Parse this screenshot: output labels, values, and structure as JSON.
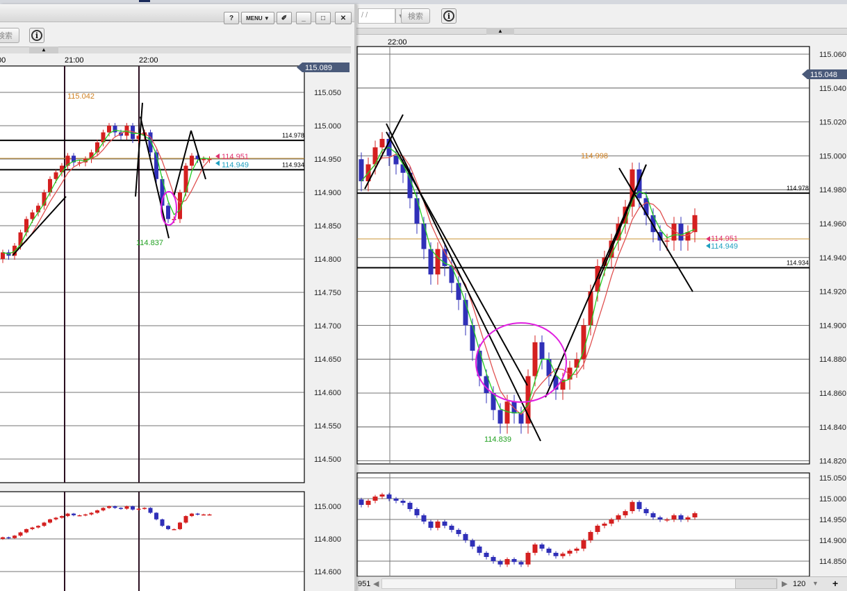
{
  "colors": {
    "up": "#d42020",
    "down": "#3030b8",
    "ma_fast": "#22cc22",
    "ma_slow": "#e05050",
    "circle": "#e020e0",
    "tag": "#4a5a7a"
  },
  "left_window": {
    "title_buttons": {
      "help": "?",
      "menu": "MENU ▼",
      "pin": "pin-icon",
      "minimize": "_",
      "maximize": "□",
      "close": "✕"
    },
    "search_label": "検索",
    "info_label": "i",
    "time_labels": [
      "00",
      "21:00",
      "22:00"
    ],
    "price_axis": [
      "115.050",
      "115.000",
      "114.950",
      "114.900",
      "114.850",
      "114.800",
      "114.750",
      "114.700",
      "114.650",
      "114.600",
      "114.550",
      "114.500"
    ],
    "current_price_tag": "115.089",
    "lines": {
      "upper": "114.978",
      "lower": "114.934"
    },
    "annotations": {
      "high": "115.042",
      "low": "114.837",
      "bid": "114.951",
      "ask": "114.949"
    },
    "sub_axis": [
      "115.000",
      "114.800",
      "114.600"
    ]
  },
  "right_window": {
    "date_value": "/  /",
    "search_label": "検索",
    "info_label": "i",
    "time_labels": [
      "22:00"
    ],
    "price_axis": [
      "115.060",
      "115.040",
      "115.020",
      "115.000",
      "114.980",
      "114.960",
      "114.940",
      "114.920",
      "114.900",
      "114.880",
      "114.860",
      "114.840",
      "114.820"
    ],
    "current_price_tag": "115.048",
    "lines": {
      "upper": "114.978",
      "lower": "114.934"
    },
    "annotations": {
      "high": "114.998",
      "low": "114.839",
      "bid": "114.951",
      "ask": "114.949"
    },
    "sub_axis": [
      "115.050",
      "115.000",
      "114.950",
      "114.900",
      "114.850"
    ],
    "footer": {
      "left_value": "951",
      "bars_select": "120",
      "zoom_in": "+"
    }
  },
  "chart_data": [
    {
      "type": "candlestick",
      "title": "",
      "first_open": 114.8,
      "closes": [
        114.81,
        114.805,
        114.82,
        114.84,
        114.86,
        114.87,
        114.88,
        114.9,
        114.92,
        114.93,
        114.94,
        114.955,
        114.945,
        114.945,
        114.95,
        114.96,
        114.975,
        114.99,
        115.0,
        114.99,
        114.985,
        115.0,
        114.98,
        114.985,
        114.99,
        114.96,
        114.92,
        114.88,
        114.86,
        114.86,
        114.9,
        114.94,
        114.955,
        114.95,
        114.95,
        114.95
      ],
      "ylim": [
        114.48,
        115.09
      ]
    },
    {
      "type": "candlestick",
      "title": "",
      "first_open": 114.998,
      "closes": [
        114.985,
        114.995,
        115.005,
        115.01,
        115.0,
        114.995,
        114.99,
        114.975,
        114.96,
        114.945,
        114.93,
        114.945,
        114.935,
        114.925,
        114.915,
        114.9,
        114.885,
        114.87,
        114.86,
        114.85,
        114.842,
        114.855,
        114.848,
        114.842,
        114.87,
        114.89,
        114.88,
        114.87,
        114.862,
        114.868,
        114.875,
        114.88,
        114.9,
        114.92,
        114.935,
        114.94,
        114.95,
        114.96,
        114.97,
        114.992,
        114.975,
        114.965,
        114.955,
        114.95,
        114.95,
        114.96,
        114.95,
        114.955,
        114.965
      ],
      "ylim": [
        114.818,
        115.064
      ]
    }
  ]
}
